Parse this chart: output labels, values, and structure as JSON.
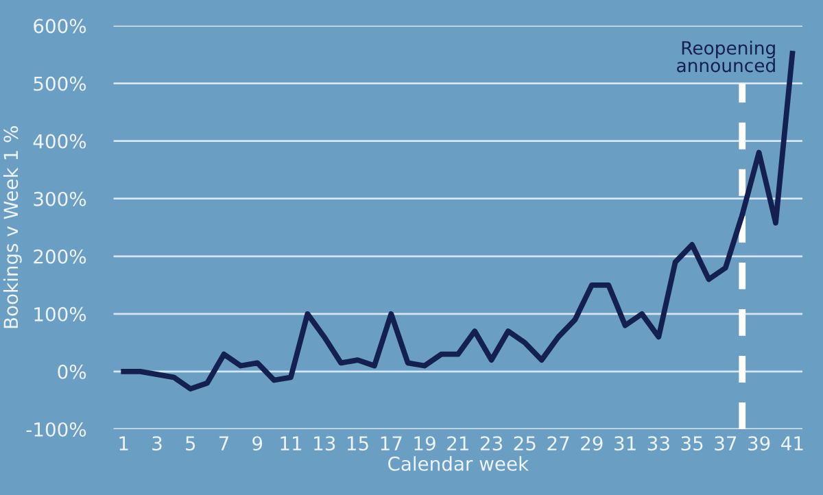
{
  "chart_data": {
    "type": "line",
    "xlabel": "Calendar week",
    "ylabel": "Bookings v Week 1 %",
    "x": [
      1,
      2,
      3,
      4,
      5,
      6,
      7,
      8,
      9,
      10,
      11,
      12,
      13,
      14,
      15,
      16,
      17,
      18,
      19,
      20,
      21,
      22,
      23,
      24,
      25,
      26,
      27,
      28,
      29,
      30,
      31,
      32,
      33,
      34,
      35,
      36,
      37,
      38,
      39,
      40,
      41
    ],
    "series": [
      {
        "color": "#14204f",
        "values": [
          0,
          0,
          -5,
          -10,
          -30,
          -20,
          30,
          10,
          15,
          -15,
          -10,
          100,
          60,
          15,
          20,
          10,
          100,
          15,
          10,
          30,
          30,
          70,
          20,
          70,
          50,
          20,
          60,
          90,
          150,
          150,
          80,
          100,
          60,
          190,
          220,
          160,
          180,
          272,
          380,
          258,
          552
        ]
      }
    ],
    "xlim": [
      0.4,
      41.6
    ],
    "xticks": [
      1,
      3,
      5,
      7,
      9,
      11,
      13,
      15,
      17,
      19,
      21,
      23,
      25,
      27,
      29,
      31,
      33,
      35,
      37,
      39,
      41
    ],
    "ylim": [
      -100,
      600
    ],
    "yticks": [
      {
        "value": -100,
        "label": "-100%"
      },
      {
        "value": 0,
        "label": "0%"
      },
      {
        "value": 100,
        "label": "100%"
      },
      {
        "value": 200,
        "label": "200%"
      },
      {
        "value": 300,
        "label": "300%"
      },
      {
        "value": 400,
        "label": "400%"
      },
      {
        "value": 500,
        "label": "500%"
      },
      {
        "value": 600,
        "label": "600%"
      }
    ],
    "grid": "y",
    "legend": false,
    "marker": "none",
    "line_style": "solid",
    "ref_lines": [
      {
        "axis": "x",
        "value": 38,
        "label": "Reopening\nannounced",
        "color": "#ffffff",
        "line_style": "dashed"
      }
    ]
  }
}
